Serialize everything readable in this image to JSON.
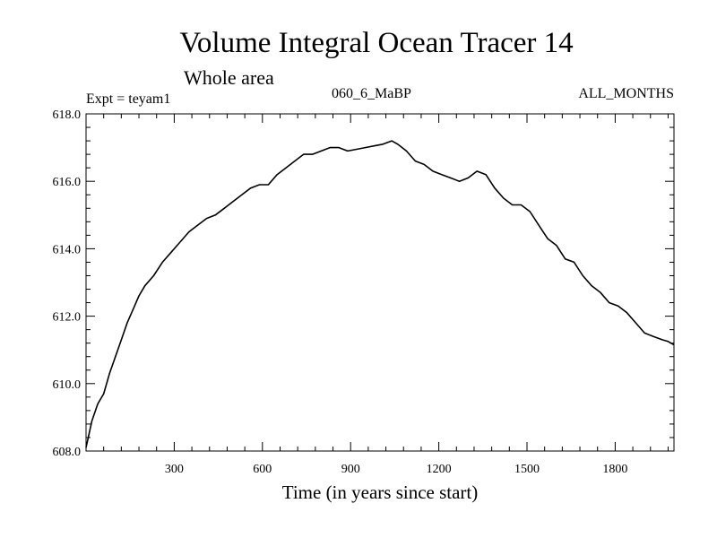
{
  "chart_data": {
    "type": "line",
    "title": "Volume Integral Ocean Tracer 14",
    "subtitle": "Whole area",
    "annotations": {
      "left": "Expt = teyam1",
      "center": "060_6_MaBP",
      "right": "ALL_MONTHS"
    },
    "xlabel": "Time (in years since start)",
    "ylabel": "",
    "xlim": [
      0,
      2000
    ],
    "ylim": [
      608.0,
      618.0
    ],
    "x_ticks": [
      300,
      600,
      900,
      1200,
      1500,
      1800
    ],
    "x_tick_labels": [
      "300",
      "600",
      "900",
      "1200",
      "1500",
      "1800"
    ],
    "y_ticks": [
      608,
      610,
      612,
      614,
      616,
      618
    ],
    "y_tick_labels": [
      "608.0",
      "610.0",
      "612.0",
      "614.0",
      "616.0",
      "618.0"
    ],
    "grid": false,
    "series": [
      {
        "x": [
          0,
          20,
          40,
          60,
          80,
          100,
          120,
          140,
          160,
          180,
          200,
          230,
          260,
          290,
          320,
          350,
          380,
          410,
          440,
          470,
          500,
          530,
          560,
          590,
          620,
          650,
          680,
          710,
          740,
          770,
          800,
          830,
          860,
          890,
          920,
          950,
          980,
          1010,
          1040,
          1060,
          1090,
          1120,
          1150,
          1180,
          1210,
          1240,
          1270,
          1300,
          1330,
          1360,
          1390,
          1420,
          1450,
          1480,
          1510,
          1540,
          1570,
          1600,
          1630,
          1660,
          1690,
          1720,
          1750,
          1780,
          1810,
          1840,
          1870,
          1900,
          1930,
          1960,
          1980,
          2000
        ],
        "y": [
          608.1,
          608.9,
          609.4,
          609.7,
          610.3,
          610.8,
          611.3,
          611.8,
          612.2,
          612.6,
          612.9,
          613.2,
          613.6,
          613.9,
          614.2,
          614.5,
          614.7,
          614.9,
          615.0,
          615.2,
          615.4,
          615.6,
          615.8,
          615.9,
          615.9,
          616.2,
          616.4,
          616.6,
          616.8,
          616.8,
          616.9,
          617.0,
          617.0,
          616.9,
          616.95,
          617.0,
          617.05,
          617.1,
          617.2,
          617.1,
          616.9,
          616.6,
          616.5,
          616.3,
          616.2,
          616.1,
          616.0,
          616.1,
          616.3,
          616.2,
          615.8,
          615.5,
          615.3,
          615.3,
          615.1,
          614.7,
          614.3,
          614.1,
          613.7,
          613.6,
          613.2,
          612.9,
          612.7,
          612.4,
          612.3,
          612.1,
          611.8,
          611.5,
          611.4,
          611.3,
          611.25,
          611.15
        ]
      }
    ]
  }
}
